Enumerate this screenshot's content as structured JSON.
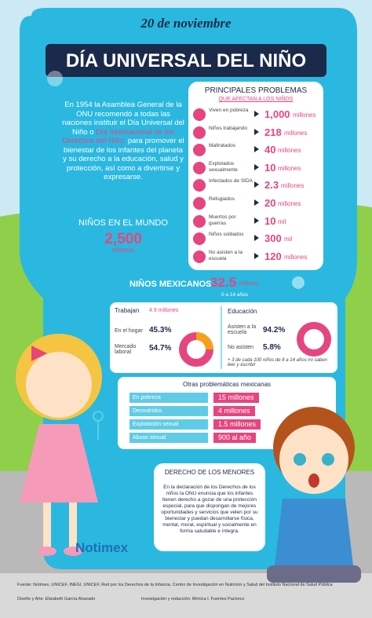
{
  "header": {
    "date": "20 de noviembre",
    "title": "DÍA UNIVERSAL DEL NIÑO"
  },
  "intro": {
    "text": "En 1954 la Asamblea General de la ONU recomendó a todas las naciones instituir el Día Universal del Niño o",
    "highlight": "Día Internacional de los Derechos del Niño,",
    "rest": "para promover el bienestar de los infantes del planeta y su derecho a la educación, salud y protección, así como a divertirse y expresarse."
  },
  "world": {
    "label": "NIÑOS EN EL MUNDO",
    "value": "2,500",
    "unit": "millones"
  },
  "problems": {
    "title": "PRINCIPALES PROBLEMAS",
    "subtitle": "QUE AFECTAN A LOS NIÑOS",
    "rows": [
      {
        "label": "Viven en pobreza",
        "value": "1,000",
        "unit": "millones"
      },
      {
        "label": "Niños trabajando",
        "value": "218",
        "unit": "millones"
      },
      {
        "label": "Maltratados",
        "value": "40",
        "unit": "millones"
      },
      {
        "label": "Explotados sexualmente",
        "value": "10",
        "unit": "millones"
      },
      {
        "label": "Infectados de SIDA",
        "value": "2.3",
        "unit": "millones"
      },
      {
        "label": "Refugiados",
        "value": "20",
        "unit": "millones"
      },
      {
        "label": "Muertos por guerras",
        "value": "10",
        "unit": "mil"
      },
      {
        "label": "Niños soldados",
        "value": "300",
        "unit": "mil"
      },
      {
        "label": "No asisten a la escuela",
        "value": "120",
        "unit": "millones"
      }
    ]
  },
  "mexico": {
    "label": "NIÑOS MEXICANOS",
    "value": "32.5",
    "unit": "millones",
    "age": "0 a 14 años"
  },
  "work": {
    "title": "Trabajan",
    "value": "4.9 millones",
    "home_label": "En el hogar",
    "home_value": "45.3%",
    "market_label": "Mercado laboral",
    "market_value": "54.7%"
  },
  "education": {
    "title": "Educación",
    "yes_label": "Asisten a la escuela",
    "yes_value": "94.2%",
    "no_label": "No asisten",
    "no_value": "5.8%",
    "note": "+ 3 de cada 100 niños de 8 a 14 años no saben leer y escribir"
  },
  "others": {
    "title": "Otras problemáticas mexicanas",
    "rows": [
      {
        "label": "En pobreza",
        "value": "15 millones"
      },
      {
        "label": "Desnutridos",
        "value": "4 millones"
      },
      {
        "label": "Explotación sexual",
        "value": "1.5 millones"
      },
      {
        "label": "Abuso sexual",
        "value": "900 al año"
      }
    ]
  },
  "rights": {
    "title": "DERECHO DE LOS MENORES",
    "text": "En la declaración de los Derechos de los niños la ONU enuncia que los infantes tienen derecho a gozar de una protección especial, para que dispongan de mejores oportunidades y servicios que velen por su bienestar y puedan desarrollarse física, mental, moral, espiritual y socialmente en forma saludable e íntegra."
  },
  "footer": {
    "brand": "Notimex",
    "source": "Fuente: Notimex, UNICEF, INEGI, UNICEF, Red por los Derechos de la Infancia, Centro de Investigación en Nutrición y Salud del Instituto Nacional de Salud Pública",
    "design": "Diseño y Arte: Elizabeth García Alvarado",
    "research": "Investigación y redacción: Mónica I. Fuentes Pacheco"
  }
}
